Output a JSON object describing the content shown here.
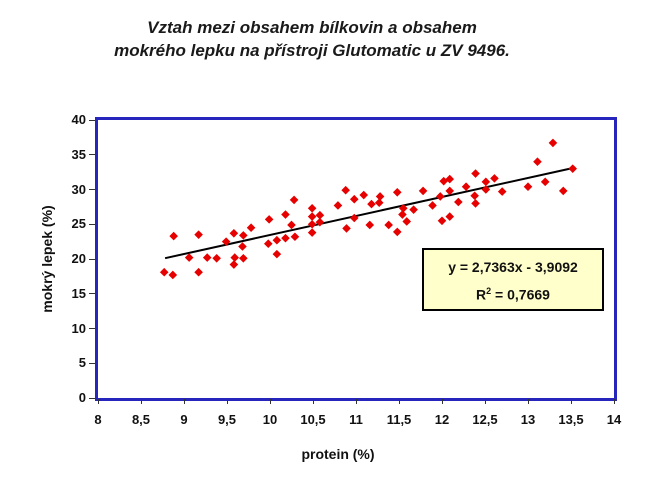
{
  "title": {
    "line1": "Vztah mezi obsahem bílkovin a obsahem",
    "line2": "mokrého lepku na přístroji Glutomatic u ZV 9496."
  },
  "axes": {
    "x": {
      "label": "protein (%)",
      "min": 8,
      "max": 14,
      "tick_labels": [
        "8",
        "8,5",
        "9",
        "9,5",
        "10",
        "10,5",
        "11",
        "11,5",
        "12",
        "12,5",
        "13",
        "13,5",
        "14"
      ]
    },
    "y": {
      "label": "mokrý lepek (%)",
      "min": 0,
      "max": 40,
      "tick_labels": [
        "0",
        "5",
        "10",
        "15",
        "20",
        "25",
        "30",
        "35",
        "40"
      ]
    }
  },
  "equation_box": {
    "line1": "y = 2,7363x - 3,9092",
    "r_prefix": "R",
    "r_sup": "2",
    "r_rest": " = 0,7669"
  },
  "colors": {
    "frame": "#2626bd",
    "point": "#e60000",
    "trend": "#000000",
    "eq_bg": "#ffffcc",
    "eq_border": "#000000"
  },
  "chart_data": {
    "type": "scatter",
    "title": "Vztah mezi obsahem bílkovin a obsahem mokrého lepku na přístroji Glutomatic u ZV 9496.",
    "xlabel": "protein (%)",
    "ylabel": "mokrý lepek (%)",
    "xlim": [
      8,
      14
    ],
    "ylim": [
      0,
      40
    ],
    "x_tick_step": 0.5,
    "y_tick_step": 5,
    "grid": false,
    "legend": false,
    "marker": "diamond",
    "points": [
      [
        8.77,
        18.1
      ],
      [
        8.87,
        17.7
      ],
      [
        8.88,
        23.3
      ],
      [
        9.06,
        20.2
      ],
      [
        9.17,
        23.5
      ],
      [
        9.17,
        18.1
      ],
      [
        9.27,
        20.2
      ],
      [
        9.38,
        20.1
      ],
      [
        9.49,
        22.5
      ],
      [
        9.58,
        23.7
      ],
      [
        9.58,
        19.2
      ],
      [
        9.59,
        20.2
      ],
      [
        9.68,
        21.8
      ],
      [
        9.69,
        23.4
      ],
      [
        9.69,
        20.1
      ],
      [
        9.78,
        24.5
      ],
      [
        9.98,
        22.2
      ],
      [
        9.99,
        25.7
      ],
      [
        10.08,
        22.7
      ],
      [
        10.08,
        20.7
      ],
      [
        10.18,
        26.4
      ],
      [
        10.18,
        23.0
      ],
      [
        10.25,
        24.9
      ],
      [
        10.28,
        28.5
      ],
      [
        10.29,
        23.2
      ],
      [
        10.49,
        27.3
      ],
      [
        10.49,
        26.1
      ],
      [
        10.49,
        25.0
      ],
      [
        10.49,
        23.8
      ],
      [
        10.58,
        26.3
      ],
      [
        10.58,
        25.3
      ],
      [
        10.79,
        27.7
      ],
      [
        10.88,
        29.9
      ],
      [
        10.89,
        24.4
      ],
      [
        10.98,
        28.6
      ],
      [
        10.98,
        25.9
      ],
      [
        11.09,
        29.2
      ],
      [
        11.16,
        24.9
      ],
      [
        11.18,
        27.9
      ],
      [
        11.27,
        28.1
      ],
      [
        11.28,
        29.0
      ],
      [
        11.38,
        24.9
      ],
      [
        11.48,
        29.6
      ],
      [
        11.48,
        23.9
      ],
      [
        11.54,
        26.4
      ],
      [
        11.55,
        27.3
      ],
      [
        11.59,
        25.4
      ],
      [
        11.67,
        27.1
      ],
      [
        11.78,
        29.8
      ],
      [
        11.89,
        27.7
      ],
      [
        11.98,
        29.0
      ],
      [
        12.0,
        25.5
      ],
      [
        12.02,
        31.2
      ],
      [
        12.09,
        31.5
      ],
      [
        12.09,
        29.8
      ],
      [
        12.09,
        26.1
      ],
      [
        12.19,
        28.2
      ],
      [
        12.28,
        30.4
      ],
      [
        12.38,
        29.1
      ],
      [
        12.39,
        32.3
      ],
      [
        12.39,
        28.0
      ],
      [
        12.51,
        31.1
      ],
      [
        12.51,
        30.0
      ],
      [
        12.61,
        31.6
      ],
      [
        12.7,
        29.7
      ],
      [
        13.0,
        30.4
      ],
      [
        13.11,
        34.0
      ],
      [
        13.2,
        31.1
      ],
      [
        13.29,
        36.7
      ],
      [
        13.41,
        29.8
      ],
      [
        13.52,
        33.0
      ]
    ],
    "trendline": {
      "equation": "y = 2,7363x - 3,9092",
      "slope": 2.7363,
      "intercept": -3.9092,
      "r2": 0.7669,
      "x_start": 8.78,
      "x_end": 13.53
    }
  }
}
